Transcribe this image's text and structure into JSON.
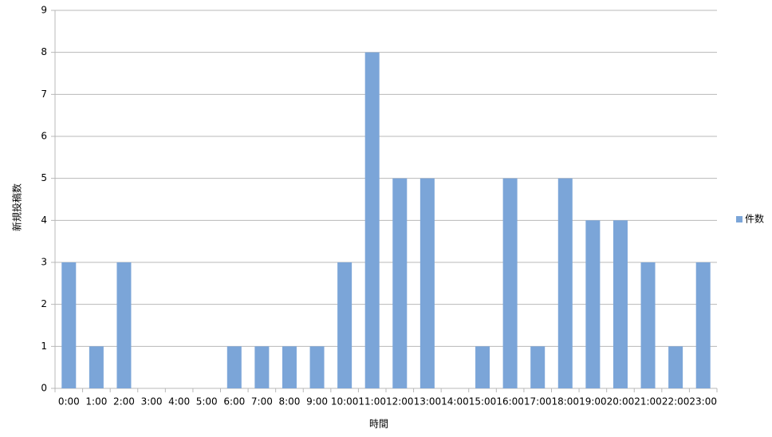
{
  "chart_data": {
    "type": "bar",
    "x_label": "時間",
    "y_label": "新規投稿数",
    "categories": [
      "0:00",
      "1:00",
      "2:00",
      "3:00",
      "4:00",
      "5:00",
      "6:00",
      "7:00",
      "8:00",
      "9:00",
      "10:00",
      "11:00",
      "12:00",
      "13:00",
      "14:00",
      "15:00",
      "16:00",
      "17:00",
      "18:00",
      "19:00",
      "20:00",
      "21:00",
      "22:00",
      "23:00"
    ],
    "series": [
      {
        "name": "件数",
        "color": "#7ba5d8",
        "values": [
          3,
          1,
          3,
          0,
          0,
          0,
          1,
          1,
          1,
          1,
          3,
          8,
          5,
          5,
          0,
          1,
          5,
          1,
          5,
          4,
          4,
          3,
          1,
          3
        ]
      }
    ],
    "ylim": [
      0,
      9
    ],
    "yticks": [
      0,
      1,
      2,
      3,
      4,
      5,
      6,
      7,
      8,
      9
    ],
    "grid": true,
    "legend": "right"
  }
}
